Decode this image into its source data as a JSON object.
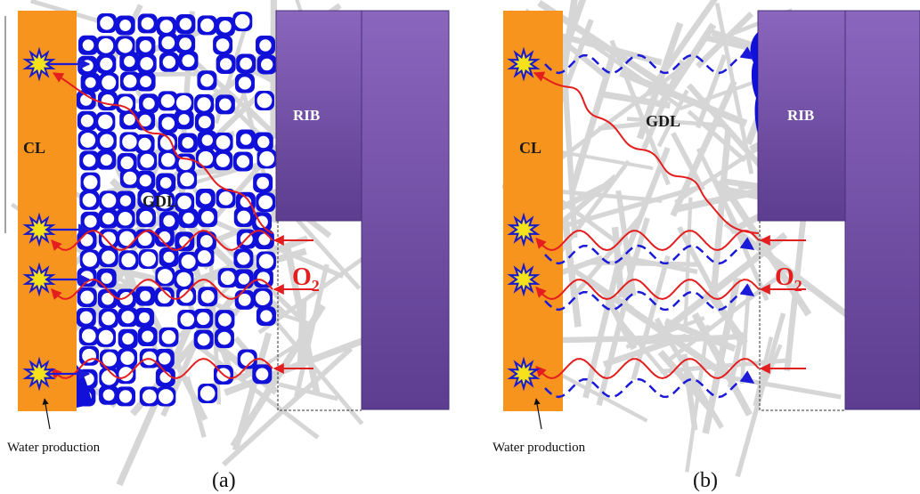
{
  "colors": {
    "cl": "#f7941d",
    "rib_top": "#7d5bb0",
    "rib_bottom": "#5e3f92",
    "water": "#1010d8",
    "oxygen_path": "#e41e1e",
    "fiber": "#d6d6d6",
    "star_fill": "#f5e21b",
    "star_stroke": "#1a1acc"
  },
  "panels": [
    {
      "id": "a",
      "cl_label": "CL",
      "gdl_label": "GDL",
      "rib_label": "RIB",
      "oxygen_label": "O",
      "oxygen_sub": "2",
      "water_label": "Water production",
      "caption": "(a)",
      "water_state": "flooded"
    },
    {
      "id": "b",
      "cl_label": "CL",
      "gdl_label": "GDL",
      "rib_label": "RIB",
      "oxygen_label": "O",
      "oxygen_sub": "2",
      "water_label": "Water production",
      "caption": "(b)",
      "water_state": "removed"
    }
  ]
}
